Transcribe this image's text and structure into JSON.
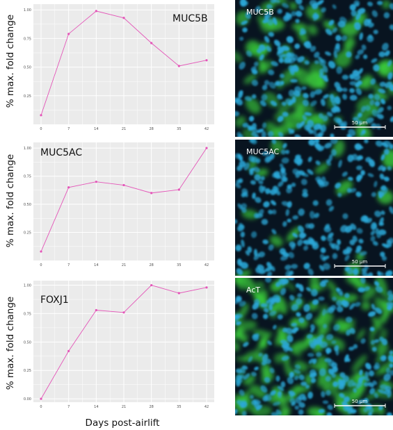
{
  "figure": {
    "shared_ylabel": "% max. fold change",
    "shared_xlabel": "Days post-airlift"
  },
  "chart_data": [
    {
      "type": "line",
      "title": "MUC5B",
      "x": [
        0,
        7,
        14,
        21,
        28,
        35,
        42
      ],
      "series": [
        {
          "values": [
            0.08,
            0.79,
            0.99,
            0.93,
            0.71,
            0.51,
            0.56
          ]
        }
      ],
      "xlabel": "Days post-airlift",
      "ylabel": "% max. fold change",
      "ylim": [
        0,
        1.05
      ],
      "yticks": [
        "0.25",
        "0.50",
        "0.75",
        "1.00"
      ],
      "xticks": [
        "0",
        "7",
        "14",
        "21",
        "28",
        "35",
        "42"
      ],
      "grid": true,
      "line_color": "#e455b8"
    },
    {
      "type": "line",
      "title": "MUC5AC",
      "x": [
        0,
        7,
        14,
        21,
        28,
        35,
        42
      ],
      "series": [
        {
          "values": [
            0.08,
            0.65,
            0.7,
            0.67,
            0.6,
            0.63,
            1.0
          ]
        }
      ],
      "xlabel": "Days post-airlift",
      "ylabel": "% max. fold change",
      "ylim": [
        0,
        1.05
      ],
      "yticks": [
        "0.25",
        "0.50",
        "0.75",
        "1.00"
      ],
      "xticks": [
        "0",
        "7",
        "14",
        "21",
        "28",
        "35",
        "42"
      ],
      "grid": true,
      "line_color": "#e455b8"
    },
    {
      "type": "line",
      "title": "FOXJ1",
      "x": [
        0,
        7,
        14,
        21,
        28,
        35,
        42
      ],
      "series": [
        {
          "values": [
            0.0,
            0.42,
            0.78,
            0.76,
            1.0,
            0.93,
            0.98
          ]
        }
      ],
      "xlabel": "Days post-airlift",
      "ylabel": "% max. fold change",
      "ylim": [
        -0.03,
        1.04
      ],
      "yticks": [
        "0.00",
        "0.25",
        "0.50",
        "0.75",
        "1.00"
      ],
      "xticks": [
        "0",
        "7",
        "14",
        "21",
        "28",
        "35",
        "42"
      ],
      "grid": true,
      "line_color": "#e455b8"
    }
  ],
  "micrographs": [
    {
      "label": "MUC5B",
      "scalebar": "50 µm",
      "stain": "green-speckled",
      "nuclei_color": "#2aa8d8",
      "signal_color": "#3cd23c"
    },
    {
      "label": "MUC5AC",
      "scalebar": "50 µm",
      "stain": "green-sparse",
      "nuclei_color": "#2aa8d8",
      "signal_color": "#3cd23c"
    },
    {
      "label": "AcT",
      "scalebar": "50 µm",
      "stain": "green-dense",
      "nuclei_color": "#2aa8d8",
      "signal_color": "#3cd23c"
    }
  ]
}
